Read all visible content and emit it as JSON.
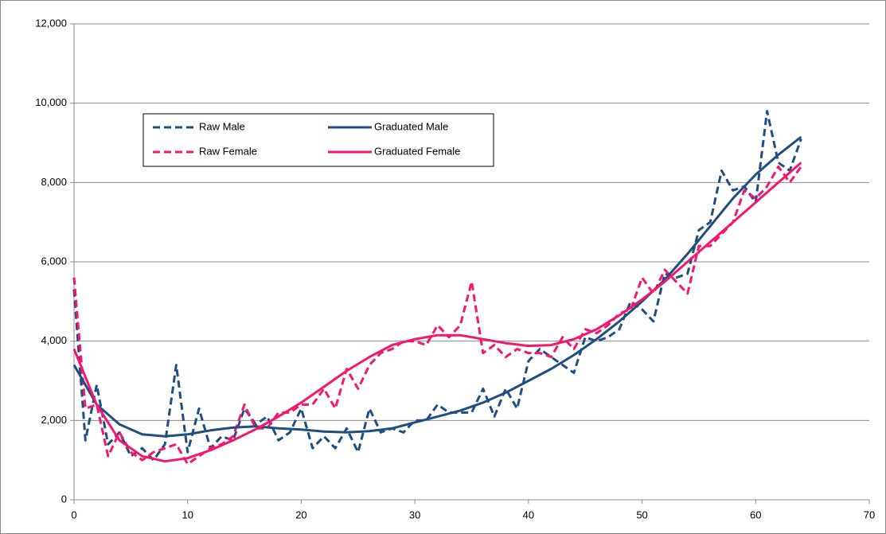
{
  "chart_data": {
    "type": "line",
    "xlim": [
      0,
      70
    ],
    "xticks": [
      0,
      10,
      20,
      30,
      40,
      50,
      60,
      70
    ],
    "ylim": [
      0,
      12000
    ],
    "yticks": [
      0,
      {
        "value": 2000,
        "label": "2,000"
      },
      {
        "value": 4000,
        "label": "4,000"
      },
      {
        "value": 6000,
        "label": "6,000"
      },
      {
        "value": 8000,
        "label": "8,000"
      },
      {
        "value": 10000,
        "label": "10,000"
      },
      {
        "value": 12000,
        "label": "12,000"
      }
    ],
    "grid": true,
    "legend": "upper left",
    "series": [
      {
        "name": "Raw Male",
        "color": "#1f4e80",
        "dash": true,
        "x": [
          0,
          1,
          2,
          3,
          4,
          5,
          6,
          7,
          8,
          9,
          10,
          11,
          12,
          13,
          14,
          15,
          16,
          17,
          18,
          19,
          20,
          21,
          22,
          23,
          24,
          25,
          26,
          27,
          28,
          29,
          30,
          31,
          32,
          33,
          34,
          35,
          36,
          37,
          38,
          39,
          40,
          41,
          42,
          43,
          44,
          45,
          46,
          47,
          48,
          49,
          50,
          51,
          52,
          53,
          54,
          55,
          56,
          57,
          58,
          59,
          60,
          61,
          62,
          63,
          64
        ],
        "values": [
          5300,
          1500,
          2900,
          1400,
          1700,
          1100,
          1300,
          1000,
          1400,
          3400,
          1200,
          2300,
          1300,
          1600,
          1500,
          2300,
          1900,
          2100,
          1500,
          1700,
          2300,
          1300,
          1600,
          1300,
          1800,
          1200,
          2300,
          1700,
          1800,
          1700,
          2000,
          2000,
          2400,
          2200,
          2200,
          2200,
          2800,
          2100,
          2800,
          2300,
          3500,
          3800,
          3600,
          3400,
          3200,
          4100,
          4000,
          4100,
          4300,
          5000,
          4800,
          4500,
          5700,
          5600,
          5700,
          6800,
          7000,
          8300,
          7800,
          7900,
          7500,
          9800,
          8500,
          8300,
          9100
        ]
      },
      {
        "name": "Raw Female",
        "color": "#f5166e",
        "dash": true,
        "x": [
          0,
          1,
          2,
          3,
          4,
          5,
          6,
          7,
          8,
          9,
          10,
          11,
          12,
          13,
          14,
          15,
          16,
          17,
          18,
          19,
          20,
          21,
          22,
          23,
          24,
          25,
          26,
          27,
          28,
          29,
          30,
          31,
          32,
          33,
          34,
          35,
          36,
          37,
          38,
          39,
          40,
          41,
          42,
          43,
          44,
          45,
          46,
          47,
          48,
          49,
          50,
          51,
          52,
          53,
          54,
          55,
          56,
          57,
          58,
          59,
          60,
          61,
          62,
          63,
          64
        ],
        "values": [
          5600,
          2300,
          2400,
          1100,
          1700,
          1200,
          1000,
          1200,
          1300,
          1400,
          900,
          1100,
          1300,
          1400,
          1600,
          2400,
          1800,
          1800,
          2200,
          2200,
          2400,
          2400,
          2800,
          2300,
          3300,
          2800,
          3400,
          3700,
          3800,
          4000,
          4000,
          3900,
          4400,
          4100,
          4400,
          5500,
          3700,
          3900,
          3600,
          3800,
          3700,
          3700,
          3600,
          4100,
          3800,
          4300,
          4200,
          4400,
          4700,
          4800,
          5600,
          5200,
          5800,
          5500,
          5200,
          6400,
          6400,
          6700,
          7000,
          7800,
          7600,
          7900,
          8400,
          8000,
          8400
        ]
      },
      {
        "name": "Graduated Male",
        "color": "#1f4e80",
        "dash": false,
        "x": [
          0,
          2,
          4,
          6,
          8,
          10,
          12,
          14,
          16,
          18,
          20,
          22,
          24,
          26,
          28,
          30,
          32,
          34,
          36,
          38,
          40,
          42,
          44,
          46,
          48,
          50,
          52,
          54,
          56,
          58,
          60,
          62,
          64
        ],
        "values": [
          3400,
          2400,
          1900,
          1650,
          1600,
          1650,
          1750,
          1820,
          1850,
          1800,
          1770,
          1720,
          1700,
          1730,
          1800,
          1950,
          2100,
          2250,
          2450,
          2700,
          3000,
          3300,
          3650,
          4050,
          4500,
          5000,
          5550,
          6200,
          6900,
          7600,
          8200,
          8700,
          9150
        ]
      },
      {
        "name": "Graduated Female",
        "color": "#f5166e",
        "dash": false,
        "x": [
          0,
          2,
          4,
          6,
          8,
          10,
          12,
          14,
          16,
          18,
          20,
          22,
          24,
          26,
          28,
          30,
          32,
          34,
          36,
          38,
          40,
          42,
          44,
          46,
          48,
          50,
          52,
          54,
          56,
          58,
          60,
          62,
          64
        ],
        "values": [
          3800,
          2400,
          1500,
          1100,
          970,
          1050,
          1250,
          1500,
          1780,
          2100,
          2450,
          2850,
          3250,
          3600,
          3900,
          4050,
          4150,
          4150,
          4050,
          3950,
          3880,
          3900,
          4050,
          4300,
          4650,
          5050,
          5500,
          6000,
          6500,
          7000,
          7500,
          8000,
          8500
        ]
      }
    ]
  }
}
